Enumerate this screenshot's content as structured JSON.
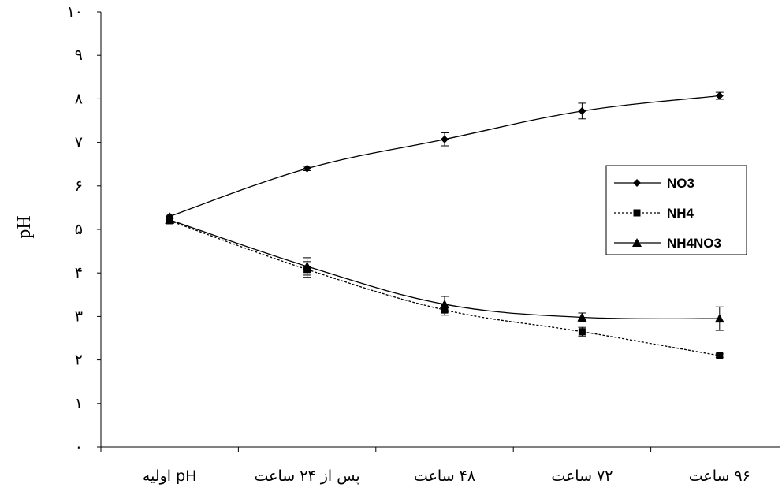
{
  "chart_data": {
    "type": "line",
    "title": "",
    "xlabel": "",
    "ylabel": "pH",
    "ylim": [
      0,
      10
    ],
    "yticks": [
      "۰",
      "۱",
      "۲",
      "۳",
      "۴",
      "۵",
      "۶",
      "۷",
      "۸",
      "۹",
      "۱۰"
    ],
    "categories": [
      "pH اولیه",
      "پس از ۲۴ ساعت",
      "۴۸ ساعت",
      "۷۲ ساعت",
      "۹۶ ساعت"
    ],
    "series": [
      {
        "name": "NO3",
        "values": [
          5.3,
          6.4,
          7.07,
          7.72,
          8.07
        ],
        "errors": [
          0.05,
          0.05,
          0.15,
          0.18,
          0.08
        ],
        "line": "solid",
        "marker": "diamond"
      },
      {
        "name": "NH4",
        "values": [
          5.2,
          4.08,
          3.15,
          2.65,
          2.1
        ],
        "errors": [
          0.05,
          0.18,
          0.12,
          0.1,
          0.04
        ],
        "line": "dotted",
        "marker": "square"
      },
      {
        "name": "NH4NO3",
        "values": [
          5.22,
          4.15,
          3.28,
          2.98,
          2.95
        ],
        "errors": [
          0.05,
          0.2,
          0.18,
          0.1,
          0.27
        ],
        "line": "solid",
        "marker": "triangle"
      }
    ],
    "legend_position": "right",
    "grid": false
  }
}
